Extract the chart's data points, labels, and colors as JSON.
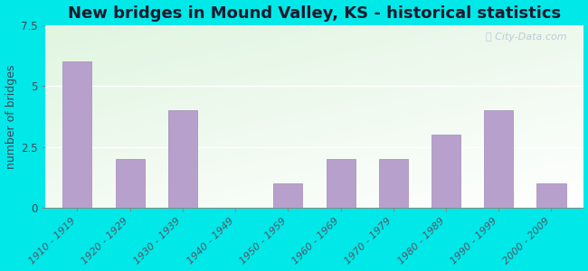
{
  "title": "New bridges in Mound Valley, KS - historical statistics",
  "ylabel": "number of bridges",
  "categories": [
    "1910 - 1919",
    "1920 - 1929",
    "1930 - 1939",
    "1940 - 1949",
    "1950 - 1959",
    "1960 - 1969",
    "1970 - 1979",
    "1980 - 1989",
    "1990 - 1999",
    "2000 - 2009"
  ],
  "values": [
    6,
    2,
    4,
    0,
    1,
    2,
    2,
    3,
    4,
    1
  ],
  "bar_color": "#b8a0cc",
  "bar_edgecolor": "#a08ab8",
  "ylim": [
    0,
    7.5
  ],
  "yticks": [
    0,
    2.5,
    5,
    7.5
  ],
  "bg_outer": "#00e8e8",
  "bg_inner_topleft": "#c8e8c0",
  "bg_inner_bottomright": "#f8fff8",
  "title_fontsize": 13,
  "ylabel_fontsize": 9,
  "tick_fontsize": 8,
  "watermark": "City-Data.com"
}
